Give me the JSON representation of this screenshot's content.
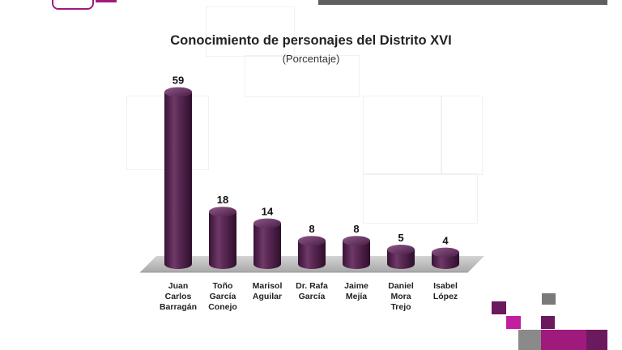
{
  "header": {
    "title": "Conocimiento de personajes del Distrito XVI",
    "subtitle": "(Porcentaje)"
  },
  "chart_data": {
    "type": "bar",
    "title": "Conocimiento de personajes del Distrito XVI",
    "subtitle": "(Porcentaje)",
    "categories": [
      [
        "Juan",
        "Carlos",
        "Barragán"
      ],
      [
        "Toño",
        "García",
        "Conejo"
      ],
      [
        "Marisol",
        "Aguilar"
      ],
      [
        "Dr. Rafa",
        "García"
      ],
      [
        "Jaime",
        "Mejía"
      ],
      [
        "Daniel",
        "Mora",
        "Trejo"
      ],
      [
        "Isabel",
        "López"
      ]
    ],
    "values": [
      59,
      18,
      14,
      8,
      8,
      5,
      4
    ],
    "ylim": [
      0,
      60
    ],
    "legend": "none",
    "grid": false
  },
  "colors": {
    "bar": "#4a1c46",
    "bar_highlight": "#8a4a82",
    "floor": "#bfbfbf",
    "accent_magenta": "#a0197d",
    "accent_purple": "#6b1a5e",
    "accent_gray": "#7a7a7a"
  }
}
